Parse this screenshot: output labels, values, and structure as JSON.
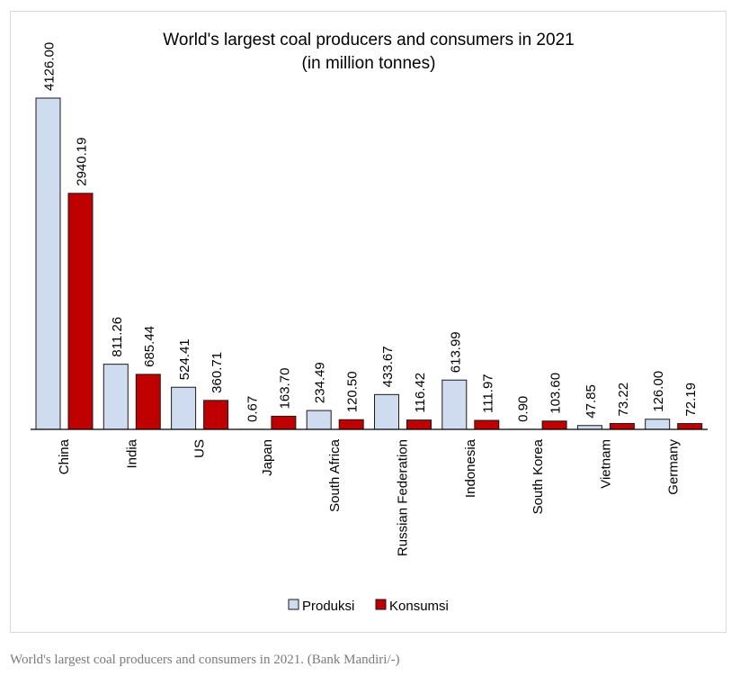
{
  "caption": "World's largest coal producers and consumers in 2021. (Bank Mandiri/-)",
  "colors": {
    "produksi": "#cfdcf0",
    "konsumsi": "#c00000",
    "bar_stroke": "#1a1a1a",
    "axis": "#000000"
  },
  "chart_data": {
    "type": "bar",
    "title": "World's largest coal producers and consumers in 2021",
    "subtitle": "(in million tonnes)",
    "categories": [
      "China",
      "India",
      "US",
      "Japan",
      "South Africa",
      "Russian Federation",
      "Indonesia",
      "South Korea",
      "Vietnam",
      "Germany"
    ],
    "series": [
      {
        "name": "Produksi",
        "values": [
          4126.0,
          811.26,
          524.41,
          0.67,
          234.49,
          433.67,
          613.99,
          0.9,
          47.85,
          126.0
        ],
        "labels": [
          "4126.00",
          "811.26",
          "524.41",
          "0.67",
          "234.49",
          "433.67",
          "613.99",
          "0.90",
          "47.85",
          "126.00"
        ]
      },
      {
        "name": "Konsumsi",
        "values": [
          2940.19,
          685.44,
          360.71,
          163.7,
          120.5,
          116.42,
          111.97,
          103.6,
          73.22,
          72.19
        ],
        "labels": [
          "2940.19",
          "685.44",
          "360.71",
          "163.70",
          "120.50",
          "116.42",
          "111.97",
          "103.60",
          "73.22",
          "72.19"
        ]
      }
    ],
    "xlabel": "",
    "ylabel": "",
    "ylim": [
      0,
      4126
    ],
    "grid": false,
    "legend": "bottom"
  }
}
